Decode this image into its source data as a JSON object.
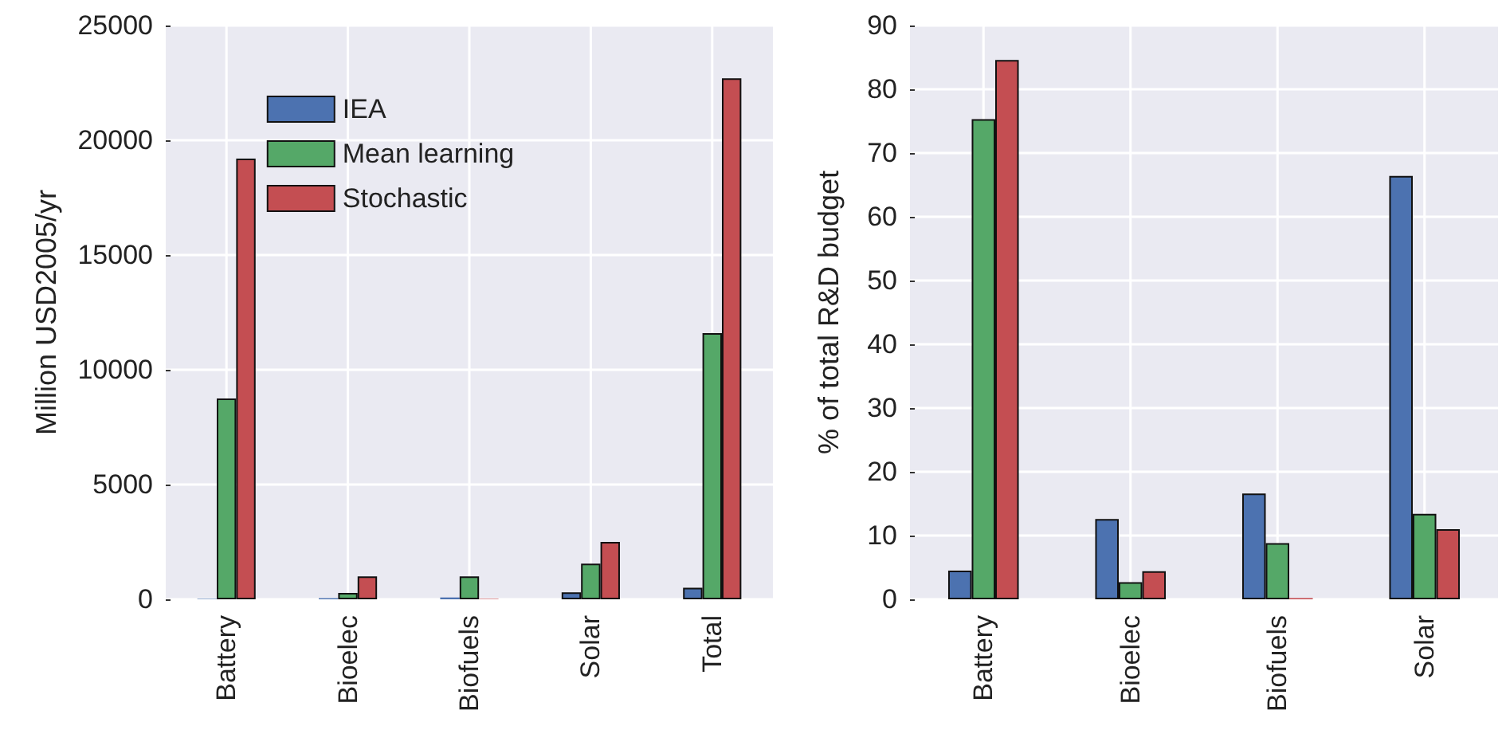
{
  "chart_data": [
    {
      "type": "bar",
      "ylabel": "Million USD2005/yr",
      "categories": [
        "Battery",
        "Bioelec",
        "Biofuels",
        "Solar",
        "Total"
      ],
      "series": [
        {
          "name": "IEA",
          "color": "#4c72b0",
          "values": [
            20,
            50,
            80,
            300,
            500
          ]
        },
        {
          "name": "Mean learning",
          "color": "#55a868",
          "values": [
            8750,
            280,
            1000,
            1550,
            11600
          ]
        },
        {
          "name": "Stochastic",
          "color": "#c44e52",
          "values": [
            19200,
            1000,
            20,
            2500,
            22700
          ]
        }
      ],
      "ylim": [
        0,
        25000
      ],
      "yticks": [
        0,
        5000,
        10000,
        15000,
        20000,
        25000
      ],
      "grid": true,
      "legend": "top"
    },
    {
      "type": "bar",
      "ylabel": "% of total R&D budget",
      "categories": [
        "Battery",
        "Bioelec",
        "Biofuels",
        "Solar"
      ],
      "series": [
        {
          "color": "#4c72b0",
          "values": [
            4.5,
            12.6,
            16.6,
            66.4
          ]
        },
        {
          "color": "#55a868",
          "values": [
            75.3,
            2.7,
            8.8,
            13.4
          ]
        },
        {
          "color": "#c44e52",
          "values": [
            84.6,
            4.4,
            0.2,
            11.0
          ]
        }
      ],
      "ylim": [
        0,
        90
      ],
      "yticks": [
        0,
        10,
        20,
        30,
        40,
        50,
        60,
        70,
        80,
        90
      ],
      "grid": true
    }
  ]
}
